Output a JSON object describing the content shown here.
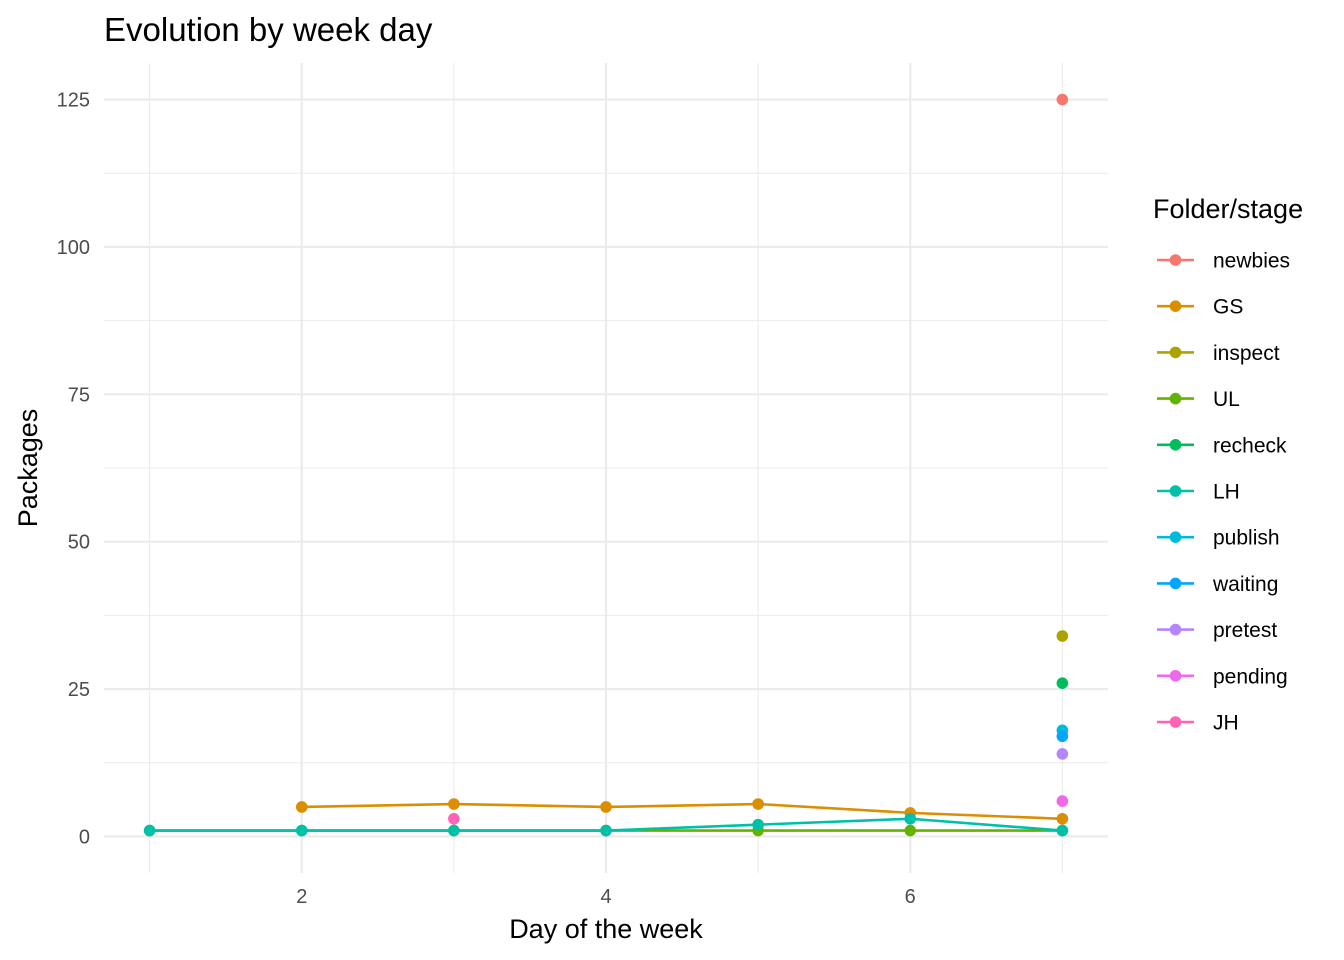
{
  "chart_data": {
    "type": "line",
    "title": "Evolution by week day",
    "xlabel": "Day of the week",
    "ylabel": "Packages",
    "xlim": [
      0.7,
      7.3
    ],
    "ylim": [
      -6.2,
      131.2
    ],
    "x_ticks": [
      2,
      4,
      6
    ],
    "y_ticks": [
      0,
      25,
      50,
      75,
      100,
      125
    ],
    "grid": true,
    "legend_title": "Folder/stage",
    "legend_position": "right",
    "series": [
      {
        "name": "newbies",
        "color": "#F8766D",
        "points": [
          [
            7,
            125
          ]
        ]
      },
      {
        "name": "GS",
        "color": "#DB8E00",
        "points": [
          [
            2,
            5
          ],
          [
            3,
            5.5
          ],
          [
            4,
            5
          ],
          [
            5,
            5.5
          ],
          [
            6,
            4
          ],
          [
            7,
            3
          ]
        ]
      },
      {
        "name": "inspect",
        "color": "#AEA200",
        "points": [
          [
            7,
            34
          ]
        ]
      },
      {
        "name": "UL",
        "color": "#64B200",
        "points": [
          [
            1,
            1
          ],
          [
            2,
            1
          ],
          [
            3,
            1
          ],
          [
            4,
            1
          ],
          [
            5,
            1
          ],
          [
            6,
            1
          ],
          [
            7,
            1
          ]
        ]
      },
      {
        "name": "recheck",
        "color": "#00BD5C",
        "points": [
          [
            7,
            26
          ]
        ]
      },
      {
        "name": "LH",
        "color": "#00C1A7",
        "points": [
          [
            1,
            1
          ],
          [
            2,
            1
          ],
          [
            3,
            1
          ],
          [
            4,
            1
          ],
          [
            5,
            2
          ],
          [
            6,
            3
          ],
          [
            7,
            1
          ]
        ]
      },
      {
        "name": "publish",
        "color": "#00BADE",
        "points": [
          [
            7,
            18
          ]
        ]
      },
      {
        "name": "waiting",
        "color": "#00A6FF",
        "points": [
          [
            7,
            17
          ]
        ]
      },
      {
        "name": "pretest",
        "color": "#B385FF",
        "points": [
          [
            7,
            14
          ]
        ]
      },
      {
        "name": "pending",
        "color": "#EF67EB",
        "points": [
          [
            7,
            6
          ]
        ]
      },
      {
        "name": "JH",
        "color": "#FF63B6",
        "points": [
          [
            3,
            3
          ]
        ]
      }
    ]
  }
}
